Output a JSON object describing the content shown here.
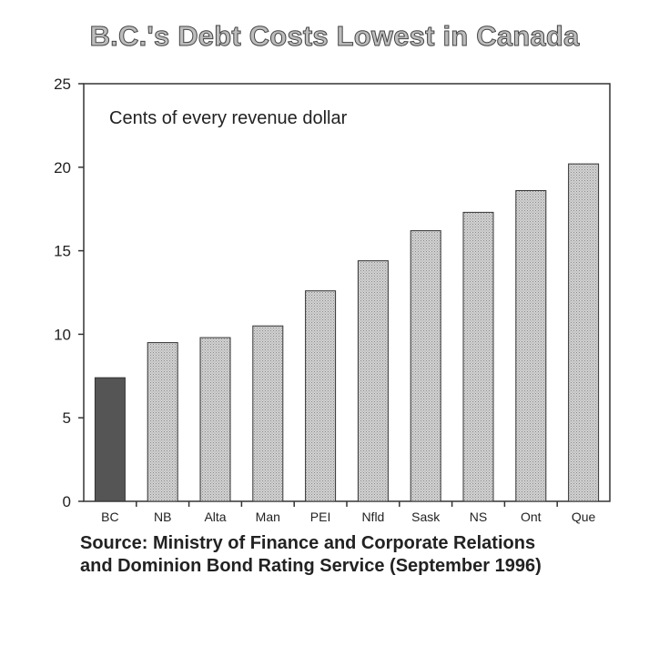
{
  "chart_data": {
    "type": "bar",
    "title": "B.C.'s Debt Costs Lowest in Canada",
    "annotation": "Cents of every revenue dollar",
    "categories": [
      "BC",
      "NB",
      "Alta",
      "Man",
      "PEI",
      "Nfld",
      "Sask",
      "NS",
      "Ont",
      "Que"
    ],
    "values": [
      7.4,
      9.5,
      9.8,
      10.5,
      12.6,
      14.4,
      16.2,
      17.3,
      18.6,
      20.2
    ],
    "ylim": [
      0,
      25
    ],
    "yticks": [
      0,
      5,
      10,
      15,
      20,
      25
    ],
    "xlabel": "",
    "ylabel": "",
    "grid": false,
    "highlight_category": "BC",
    "colors": {
      "highlight": "#555555",
      "bar": "#c4c4c4",
      "axis": "#333333"
    }
  },
  "source": {
    "line1": "Source: Ministry of Finance and Corporate Relations",
    "line2": "and Dominion Bond Rating Service (September 1996)"
  }
}
